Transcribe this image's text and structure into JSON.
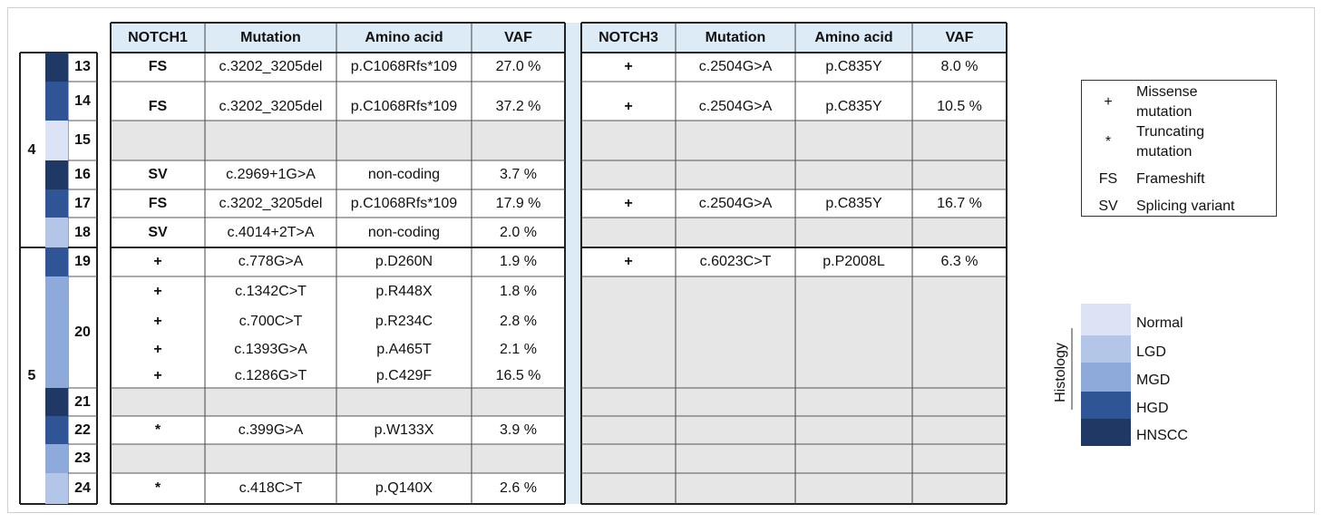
{
  "headers": {
    "left": [
      "NOTCH1",
      "Mutation",
      "Amino acid",
      "VAF"
    ],
    "right": [
      "NOTCH3",
      "Mutation",
      "Amino acid",
      "VAF"
    ]
  },
  "patients": [
    {
      "label": "4"
    },
    {
      "label": "5"
    }
  ],
  "samples": [
    {
      "id": "13",
      "histology": "HNSCC",
      "notch1": [
        {
          "sym": "FS",
          "mut": "c.3202_3205del",
          "aa": "p.C1068Rfs*109",
          "vaf": "27.0 %"
        }
      ],
      "notch3": [
        {
          "sym": "+",
          "mut": "c.2504G>A",
          "aa": "p.C835Y",
          "vaf": "8.0 %"
        }
      ]
    },
    {
      "id": "14",
      "histology": "HGD",
      "notch1": [
        {
          "sym": "FS",
          "mut": "c.3202_3205del",
          "aa": "p.C1068Rfs*109",
          "vaf": "37.2 %"
        }
      ],
      "notch3": [
        {
          "sym": "+",
          "mut": "c.2504G>A",
          "aa": "p.C835Y",
          "vaf": "10.5 %"
        }
      ]
    },
    {
      "id": "15",
      "histology": "Normal",
      "notch1": [],
      "notch3": []
    },
    {
      "id": "16",
      "histology": "HNSCC",
      "notch1": [
        {
          "sym": "SV",
          "mut": "c.2969+1G>A",
          "aa": "non-coding",
          "vaf": "3.7 %"
        }
      ],
      "notch3": []
    },
    {
      "id": "17",
      "histology": "HGD",
      "notch1": [
        {
          "sym": "FS",
          "mut": "c.3202_3205del",
          "aa": "p.C1068Rfs*109",
          "vaf": "17.9 %"
        }
      ],
      "notch3": [
        {
          "sym": "+",
          "mut": "c.2504G>A",
          "aa": "p.C835Y",
          "vaf": "16.7 %"
        }
      ]
    },
    {
      "id": "18",
      "histology": "LGD",
      "notch1": [
        {
          "sym": "SV",
          "mut": "c.4014+2T>A",
          "aa": "non-coding",
          "vaf": "2.0 %"
        }
      ],
      "notch3": []
    },
    {
      "id": "19",
      "histology": "HGD",
      "notch1": [
        {
          "sym": "+",
          "mut": "c.778G>A",
          "aa": "p.D260N",
          "vaf": "1.9 %"
        }
      ],
      "notch3": [
        {
          "sym": "+",
          "mut": "c.6023C>T",
          "aa": "p.P2008L",
          "vaf": "6.3 %"
        }
      ]
    },
    {
      "id": "20",
      "histology": "MGD",
      "notch1": [
        {
          "sym": "+",
          "mut": "c.1342C>T",
          "aa": "p.R448X",
          "vaf": "1.8 %"
        },
        {
          "sym": "+",
          "mut": "c.700C>T",
          "aa": "p.R234C",
          "vaf": "2.8 %"
        },
        {
          "sym": "+",
          "mut": "c.1393G>A",
          "aa": "p.A465T",
          "vaf": "2.1 %"
        },
        {
          "sym": "+",
          "mut": "c.1286G>T",
          "aa": "p.C429F",
          "vaf": "16.5 %"
        }
      ],
      "notch3": []
    },
    {
      "id": "21",
      "histology": "HNSCC",
      "notch1": [],
      "notch3": []
    },
    {
      "id": "22",
      "histology": "HGD",
      "notch1": [
        {
          "sym": "*",
          "mut": "c.399G>A",
          "aa": "p.W133X",
          "vaf": "3.9 %"
        }
      ],
      "notch3": []
    },
    {
      "id": "23",
      "histology": "MGD",
      "notch1": [],
      "notch3": []
    },
    {
      "id": "24",
      "histology": "LGD",
      "notch1": [
        {
          "sym": "*",
          "mut": "c.418C>T",
          "aa": "p.Q140X",
          "vaf": "2.6 %"
        }
      ],
      "notch3": []
    }
  ],
  "legend_symbols": [
    {
      "sym": "+",
      "text": [
        "Missense",
        "mutation"
      ]
    },
    {
      "sym": "*",
      "text": [
        "Truncating",
        "mutation"
      ]
    },
    {
      "sym": "FS",
      "text": [
        "Frameshift"
      ]
    },
    {
      "sym": "SV",
      "text": [
        "Splicing variant"
      ]
    }
  ],
  "histology_legend": {
    "title": "Histology",
    "levels": [
      {
        "name": "Normal",
        "color": "#dbe3f4"
      },
      {
        "name": "LGD",
        "color": "#b4c6e7"
      },
      {
        "name": "MGD",
        "color": "#8eaadb"
      },
      {
        "name": "HGD",
        "color": "#2f5597"
      },
      {
        "name": "HNSCC",
        "color": "#1f3864"
      }
    ]
  },
  "colors": {
    "header_bg": "#ddebf7",
    "empty_bg": "#e6e6e6",
    "separator": "#ddebf7"
  }
}
